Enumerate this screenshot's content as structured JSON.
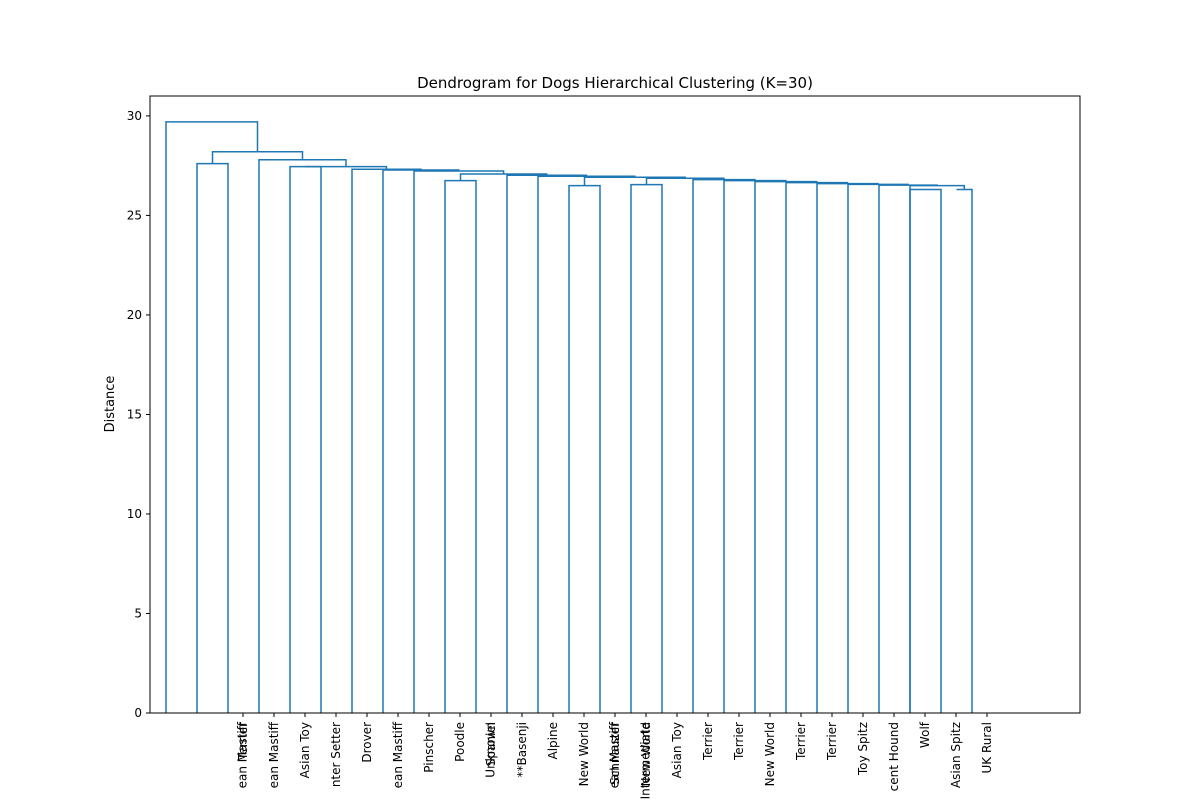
{
  "chart_data": {
    "type": "dendrogram",
    "title": "Dendrogram for Dogs Hierarchical Clustering (K=30)",
    "xlabel": "",
    "ylabel": "Distance",
    "ylim": [
      0,
      31
    ],
    "yticks": [
      0,
      5,
      10,
      15,
      20,
      25,
      30
    ],
    "color": "#1f77b4",
    "leaves": [
      "",
      "Terrier",
      "ean Mastiff",
      "Asian Toy",
      "nter Setter",
      "Drover",
      "ean Mastiff",
      "Pinscher",
      "Poodle",
      "Spaniel",
      "**Basenji",
      "Alpine",
      "New World",
      "Schnauzer",
      "New World",
      "Asian Toy",
      "Terrier",
      "Terrier",
      "New World",
      "Terrier",
      "Terrier",
      "Toy Spitz",
      "cent Hound",
      "Wolf",
      "Asian Spitz",
      "UK Rural"
    ],
    "overlap_labels": [
      {
        "between": [
          1,
          2
        ],
        "text": "ean Mastiff"
      },
      {
        "between": [
          9,
          10
        ],
        "text": "Unknown"
      },
      {
        "between": [
          13,
          14
        ],
        "text": "ean Mastiff"
      },
      {
        "between": [
          14,
          15
        ],
        "text": "Intermediate"
      }
    ],
    "merges": [
      {
        "left": [
          1,
          0
        ],
        "right": [
          2,
          0
        ],
        "height": 27.6
      },
      {
        "left": [
          4,
          0
        ],
        "right": [
          5,
          0
        ],
        "height": 27.45
      },
      {
        "left": [
          9,
          0
        ],
        "right": [
          10,
          0
        ],
        "height": 26.75
      },
      {
        "left": [
          13,
          0
        ],
        "right": [
          14,
          0
        ],
        "height": 26.5
      },
      {
        "left": [
          15,
          0
        ],
        "right": [
          16,
          0
        ],
        "height": 26.55
      },
      {
        "left": [
          24,
          0
        ],
        "right": [
          25,
          0
        ],
        "height": 26.3
      },
      {
        "left": [
          25.5,
          26.3
        ],
        "right": [
          26,
          0
        ],
        "height": 26.3
      },
      {
        "left": [
          24,
          0
        ],
        "right": [
          25.75,
          26.3
        ],
        "height": 26.5
      },
      {
        "left": [
          23,
          0
        ],
        "right": [
          24.875,
          26.5
        ],
        "height": 26.52
      },
      {
        "left": [
          22,
          0
        ],
        "right": [
          23.9375,
          26.52
        ],
        "height": 26.56
      },
      {
        "left": [
          21,
          0
        ],
        "right": [
          22.96875,
          26.56
        ],
        "height": 26.6
      },
      {
        "left": [
          20,
          0
        ],
        "right": [
          21.984375,
          26.6
        ],
        "height": 26.65
      },
      {
        "left": [
          19,
          0
        ],
        "right": [
          20.9921875,
          26.65
        ],
        "height": 26.7
      },
      {
        "left": [
          18,
          0
        ],
        "right": [
          19.99609375,
          26.7
        ],
        "height": 26.75
      },
      {
        "left": [
          17,
          0
        ],
        "right": [
          18.998046875,
          26.75
        ],
        "height": 26.8
      },
      {
        "left": [
          15.5,
          26.55
        ],
        "right": [
          17.9990234375,
          26.8
        ],
        "height": 26.87
      },
      {
        "left": [
          13.5,
          26.5
        ],
        "right": [
          16.74951171875,
          26.87
        ],
        "height": 26.92
      },
      {
        "left": [
          12,
          0
        ],
        "right": [
          15.124755859375,
          26.92
        ],
        "height": 26.97
      },
      {
        "left": [
          11,
          0
        ],
        "right": [
          13.5623779296875,
          26.97
        ],
        "height": 27.02
      },
      {
        "left": [
          9.5,
          26.75
        ],
        "right": [
          12.28118896484375,
          27.02
        ],
        "height": 27.08
      },
      {
        "left": [
          8,
          0
        ],
        "right": [
          10.890594482421875,
          27.08
        ],
        "height": 27.23
      },
      {
        "left": [
          7,
          0
        ],
        "right": [
          9.445297241210938,
          27.23
        ],
        "height": 27.28
      },
      {
        "left": [
          6,
          0
        ],
        "right": [
          8.222648620605469,
          27.28
        ],
        "height": 27.32
      },
      {
        "left": [
          4.5,
          27.45
        ],
        "right": [
          7.111324310302734,
          27.32
        ],
        "height": 27.45
      },
      {
        "left": [
          3,
          0
        ],
        "right": [
          5.805662155151367,
          27.45
        ],
        "height": 27.8
      },
      {
        "left": [
          1.5,
          27.6
        ],
        "right": [
          4.402831077575684,
          27.8
        ],
        "height": 28.2
      },
      {
        "left": [
          0,
          0
        ],
        "right": [
          2.951415538787842,
          28.2
        ],
        "height": 29.7
      }
    ]
  }
}
